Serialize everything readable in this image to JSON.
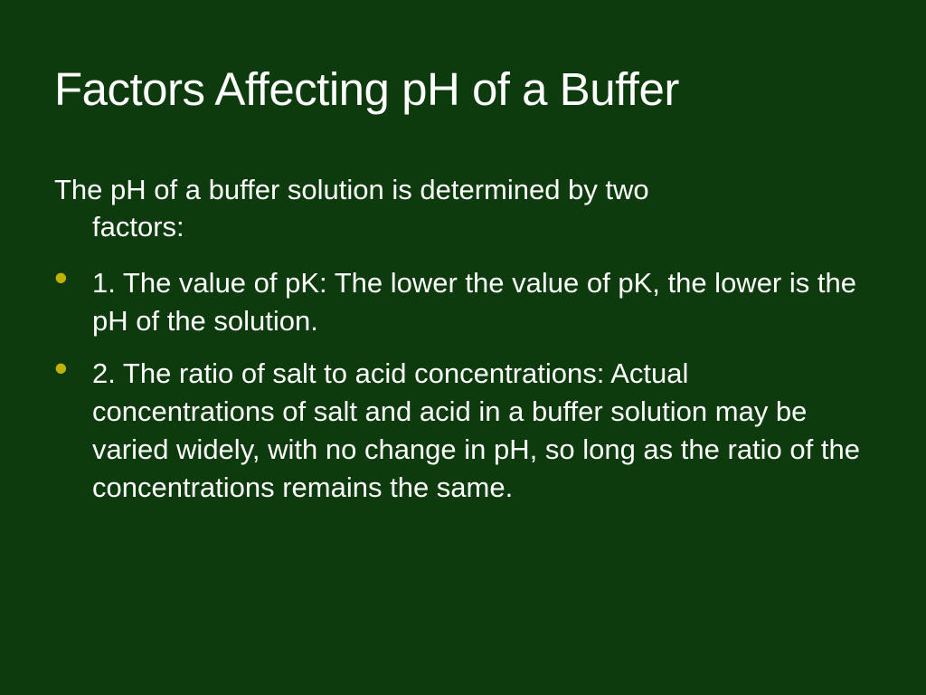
{
  "slide": {
    "background_color": "#0d3b0d",
    "text_color": "#ffffff",
    "bullet_color": "#c2b200",
    "title": "Factors Affecting pH of a Buffer",
    "title_fontsize": 51,
    "intro_line1": "The pH of a buffer solution is determined by two",
    "intro_line2": "factors:",
    "body_fontsize": 31,
    "bullets": [
      "1. The value of pK: The lower the value of pK, the lower is the pH of the solution.",
      "2. The ratio of salt to acid concentrations: Actual concentrations of salt and acid in a buffer solution may be varied widely, with no change in pH, so long as the ratio of the concentrations remains the same."
    ],
    "font_family": "Verdana"
  }
}
